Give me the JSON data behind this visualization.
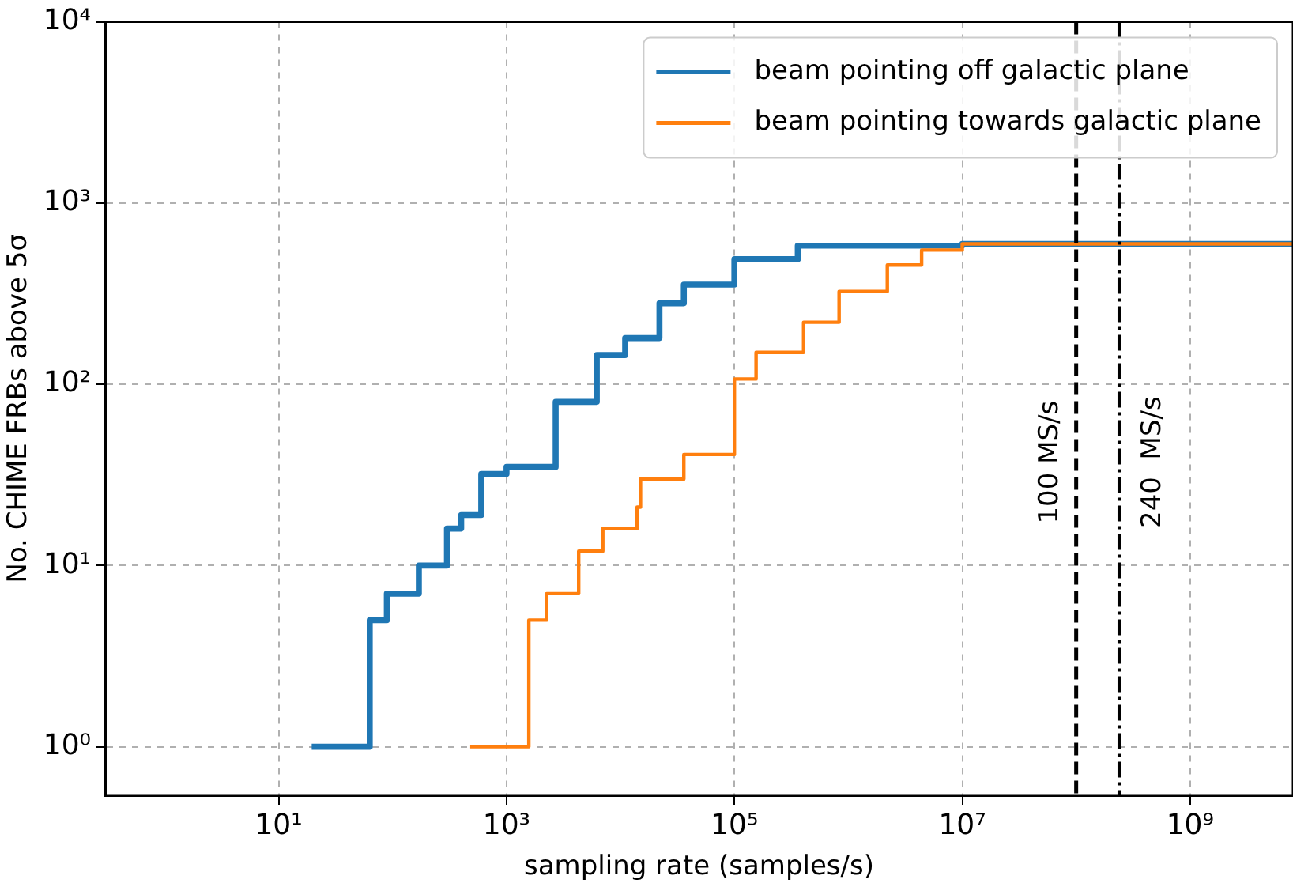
{
  "chart_data": {
    "type": "step",
    "xlabel": "sampling rate (samples/s)",
    "ylabel": "No. CHIME FRBs above 5σ",
    "log": "xy",
    "grid": true,
    "legend": "top right",
    "line_style": "solid",
    "marker": "none",
    "xlim": [
      0.3,
      8000000000
    ],
    "ylim": [
      0.54,
      10000
    ],
    "xticks": [
      {
        "value": 10,
        "label": "10¹"
      },
      {
        "value": 1000,
        "label": "10³"
      },
      {
        "value": 100000,
        "label": "10⁵"
      },
      {
        "value": 10000000,
        "label": "10⁷"
      },
      {
        "value": 1000000000,
        "label": "10⁹"
      }
    ],
    "yticks": [
      {
        "value": 1,
        "label": "10⁰"
      },
      {
        "value": 10,
        "label": "10¹"
      },
      {
        "value": 100,
        "label": "10²"
      },
      {
        "value": 1000,
        "label": "10³"
      },
      {
        "value": 10000,
        "label": "10⁴"
      }
    ],
    "series": [
      {
        "name": "beam pointing off galactic plane",
        "color": "#1f77b4",
        "x": [
          19.5,
          63,
          89,
          170,
          300,
          400,
          600,
          1000,
          2700,
          6200,
          11000,
          22000,
          36000,
          100000,
          360000,
          10000000,
          8000000000
        ],
        "values": [
          1,
          5,
          7,
          10,
          16,
          19,
          32,
          35,
          80,
          145,
          180,
          280,
          355,
          490,
          582,
          595,
          595
        ]
      },
      {
        "name": "beam pointing towards galactic plane",
        "color": "#ff7f0e",
        "x": [
          480,
          1570,
          2250,
          4300,
          7000,
          14000,
          15000,
          36000,
          100000,
          155000,
          405000,
          830000,
          2200000,
          4400000,
          10000000,
          8000000000
        ],
        "values": [
          1,
          5,
          7,
          12,
          16,
          21,
          30,
          41,
          107,
          150,
          220,
          325,
          455,
          550,
          595,
          595
        ]
      }
    ],
    "ref_lines": [
      {
        "axis": "x",
        "value": 100000000,
        "label": "100 MS/s",
        "color": "#000000",
        "line_style": "dashed"
      },
      {
        "axis": "x",
        "value": 240000000,
        "label": "240  MS/s",
        "color": "#000000",
        "line_style": "dashdot"
      }
    ]
  }
}
